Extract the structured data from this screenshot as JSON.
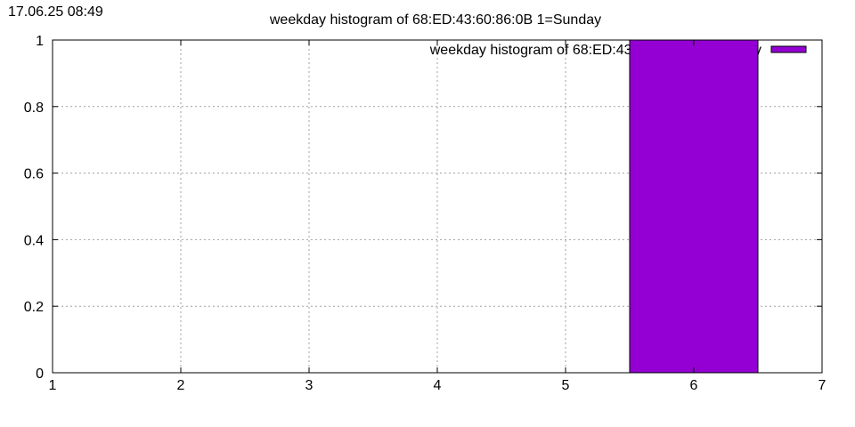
{
  "timestamp": "17.06.25 08:49",
  "chart_data": {
    "type": "bar",
    "title": "weekday histogram of 68:ED:43:60:86:0B 1=Sunday",
    "xlabel": "",
    "ylabel": "",
    "xlim": [
      1,
      7
    ],
    "ylim": [
      0,
      1
    ],
    "x_ticks": [
      "1",
      "2",
      "3",
      "4",
      "5",
      "6",
      "7"
    ],
    "y_ticks": [
      "0",
      "0.2",
      "0.4",
      "0.6",
      "0.8",
      "1"
    ],
    "grid": true,
    "legend_position": "top-right",
    "bar_width": 1,
    "series": [
      {
        "name": "weekday histogram of 68:ED:43:60:86:0B 1=Sunday",
        "color": "#9400d3",
        "points": [
          {
            "x": 6,
            "y": 1
          }
        ]
      }
    ]
  }
}
